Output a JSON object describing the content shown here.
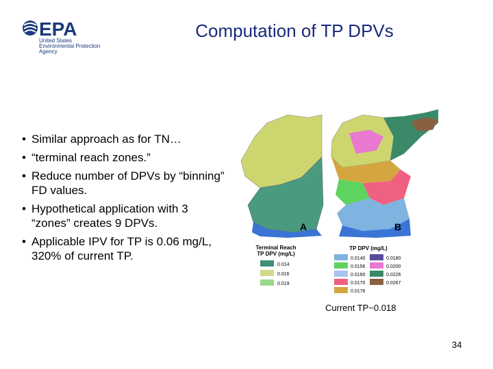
{
  "logo": {
    "name": "EPA",
    "lines": [
      "United States",
      "Environmental Protection",
      "Agency"
    ]
  },
  "title": "Computation of TP DPVs",
  "bullets": [
    "Similar approach as for TN…",
    "“terminal reach zones.”",
    "Reduce number of DPVs by “binning” FD values.",
    "Hypothetical application with 3 “zones” creates 9 DPVs.",
    "Applicable IPV for TP is 0.06 mg/L, 320% of current TP."
  ],
  "figure": {
    "panel_labels": [
      "A",
      "B"
    ],
    "legend_a": {
      "title": [
        "Terminal Reach",
        "TP DPV (mg/L)"
      ],
      "entries": [
        "0.014",
        "0.016",
        "0.019"
      ]
    },
    "legend_b": {
      "title": "TP DPV (mg/L)",
      "entries": [
        "0.0140",
        "0.0156",
        "0.0160",
        "0.0170",
        "0.0176",
        "0.0180",
        "0.0200",
        "0.0226",
        "0.0267"
      ]
    },
    "caption": "Current TP~0.018"
  },
  "page_number": "34"
}
